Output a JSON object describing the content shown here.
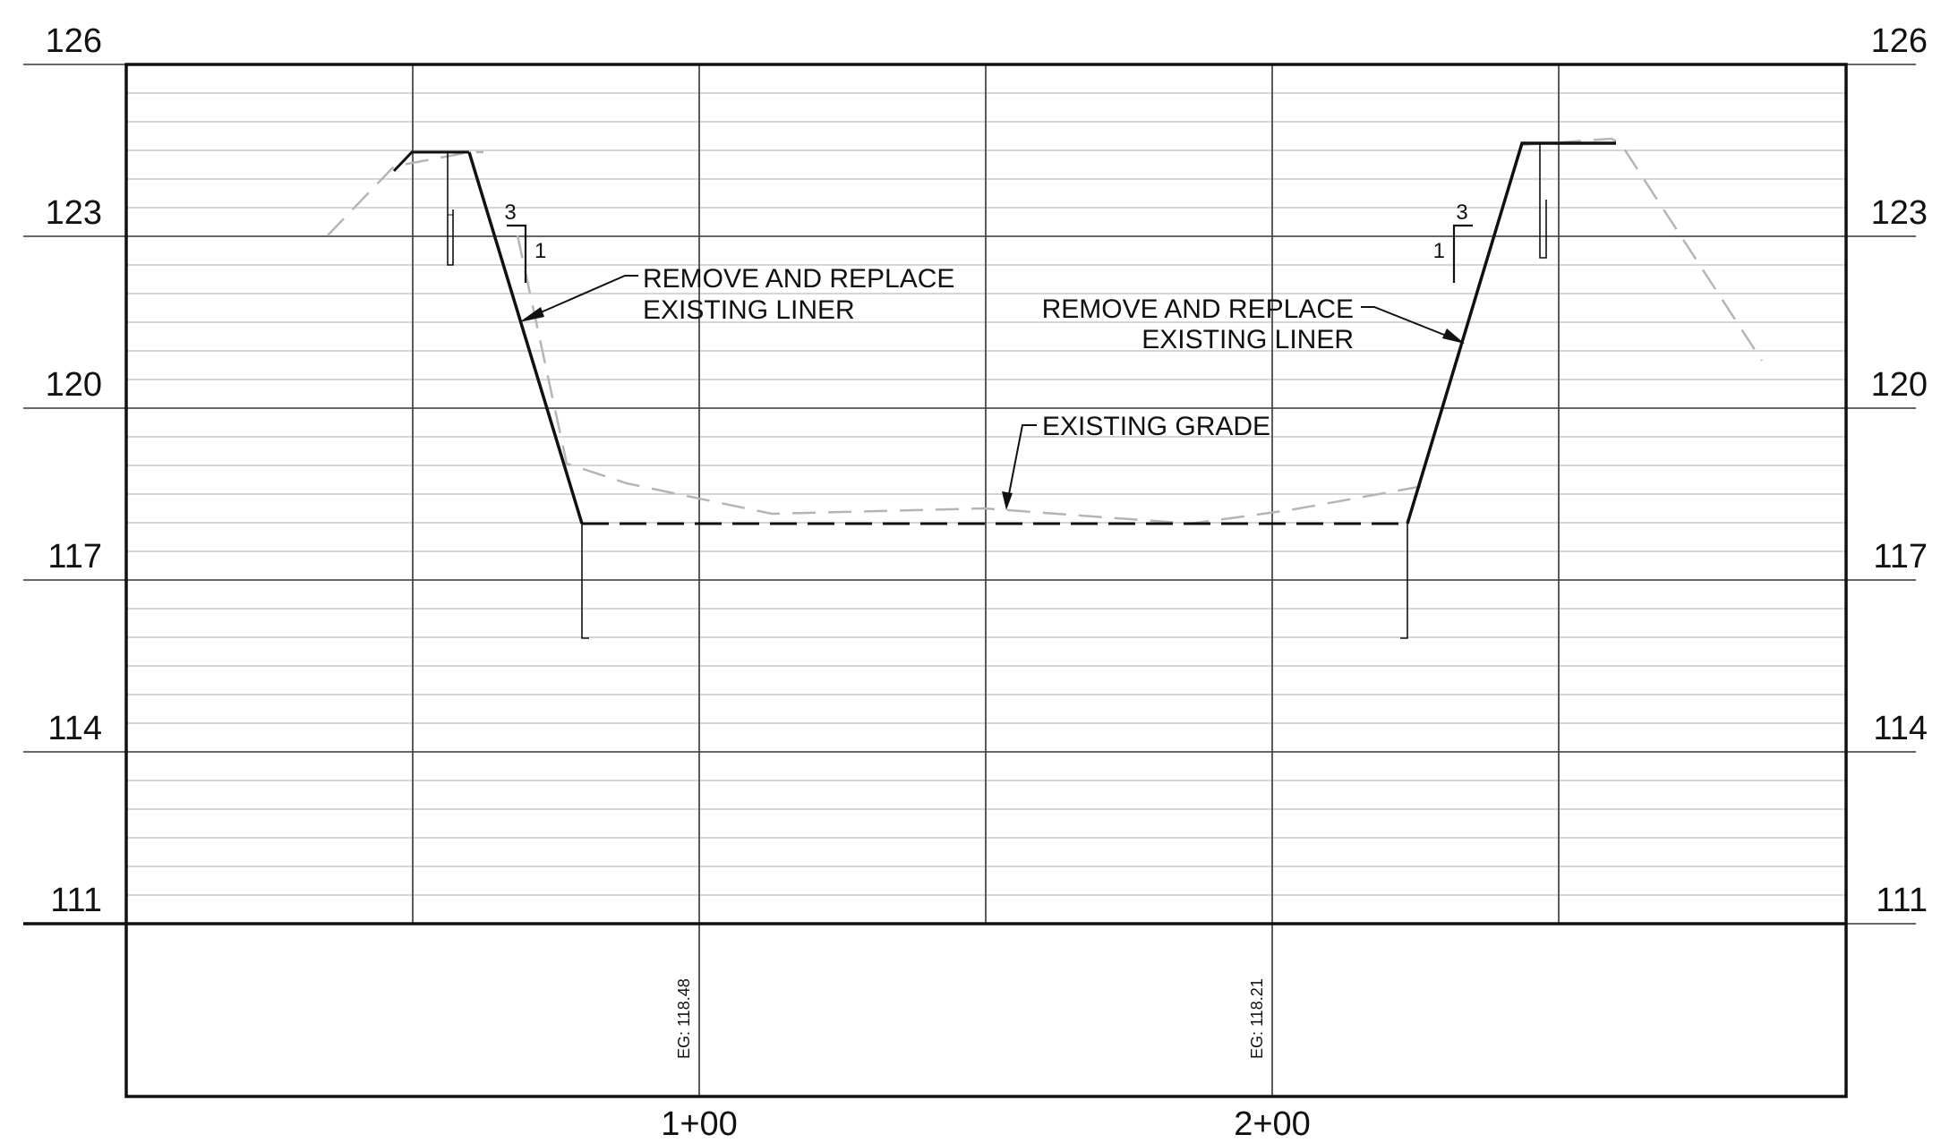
{
  "drawing": {
    "elevation_labels": [
      "126",
      "123",
      "120",
      "117",
      "114",
      "111"
    ],
    "station_labels": [
      "1+00",
      "2+00"
    ],
    "existing_grade_values": [
      "EG: 118.48",
      "EG: 118.21"
    ],
    "slopes": [
      {
        "rise": "1",
        "run": "3"
      },
      {
        "rise": "1",
        "run": "3"
      }
    ],
    "callouts": {
      "left_liner": [
        "REMOVE AND REPLACE",
        "EXISTING LINER"
      ],
      "right_liner": [
        "REMOVE AND REPLACE",
        "EXISTING LINER"
      ],
      "existing_grade": "EXISTING GRADE"
    },
    "colors": {
      "linework": "#111111",
      "minor_grid": "#bdbdbd",
      "existing_grade_line": "#b5b5b5"
    }
  }
}
